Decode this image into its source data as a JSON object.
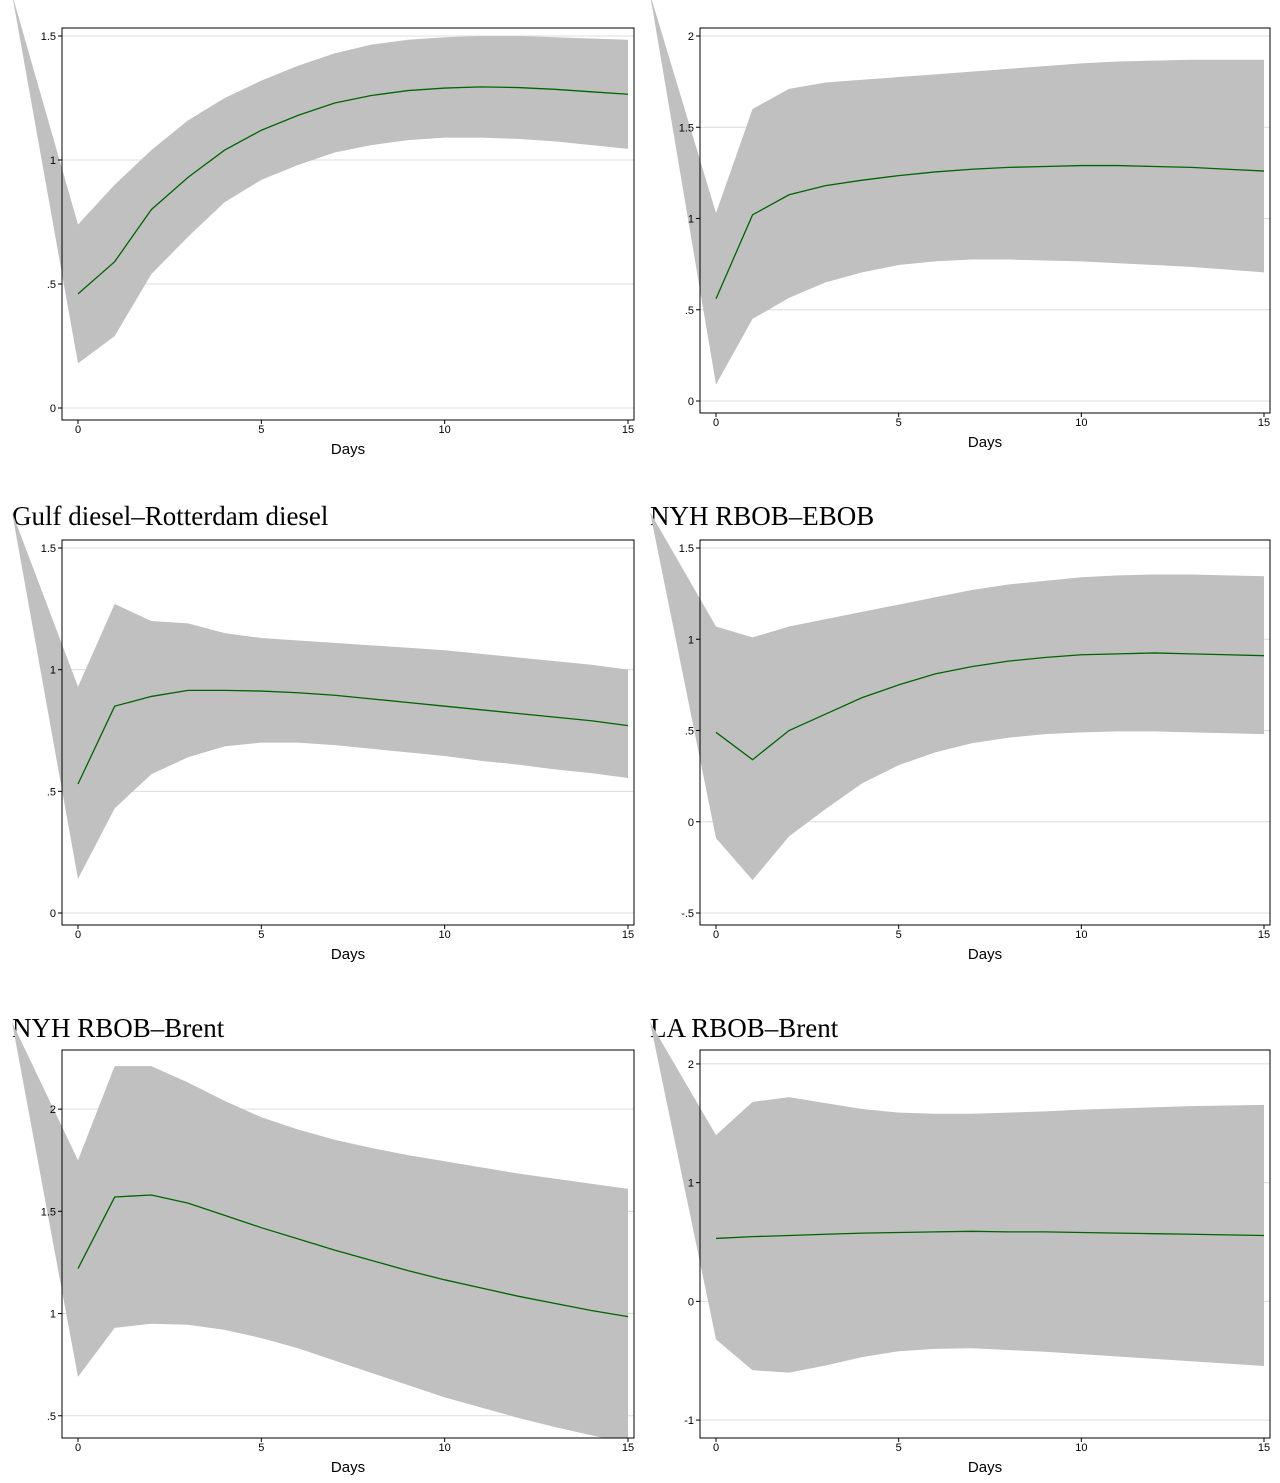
{
  "colors": {
    "band": "#c0c0c0",
    "line": "#006400",
    "grid": "#dcdcdc",
    "frame": "#000000",
    "background": "#ffffff"
  },
  "chart_data": [
    {
      "type": "line",
      "title": "",
      "xlabel": "Days",
      "ylabel": "",
      "xlim": [
        0,
        15
      ],
      "ylim": [
        0,
        1.5
      ],
      "xticks": [
        0,
        5,
        10,
        15
      ],
      "xtick_labels": [
        "0",
        "5",
        "10",
        "15"
      ],
      "yticks": [
        0,
        0.5,
        1,
        1.5
      ],
      "ytick_labels": [
        "0",
        ".5",
        "1",
        "1.5"
      ],
      "grid": true,
      "x": [
        0,
        1,
        2,
        3,
        4,
        5,
        6,
        7,
        8,
        9,
        10,
        11,
        12,
        13,
        14,
        15
      ],
      "series": [
        {
          "role": "estimate",
          "values": [
            0.46,
            0.59,
            0.8,
            0.93,
            1.04,
            1.12,
            1.18,
            1.23,
            1.26,
            1.28,
            1.29,
            1.295,
            1.292,
            1.285,
            1.275,
            1.265
          ]
        },
        {
          "role": "upper",
          "values": [
            0.74,
            0.9,
            1.04,
            1.16,
            1.25,
            1.32,
            1.38,
            1.43,
            1.465,
            1.485,
            1.495,
            1.5,
            1.5,
            1.495,
            1.49,
            1.485
          ]
        },
        {
          "role": "lower",
          "values": [
            0.18,
            0.29,
            0.54,
            0.69,
            0.83,
            0.92,
            0.98,
            1.03,
            1.06,
            1.08,
            1.09,
            1.09,
            1.085,
            1.075,
            1.06,
            1.045
          ]
        }
      ]
    },
    {
      "type": "line",
      "title": "",
      "xlabel": "Days",
      "ylabel": "",
      "xlim": [
        0,
        15
      ],
      "ylim": [
        0,
        2
      ],
      "xticks": [
        0,
        5,
        10,
        15
      ],
      "xtick_labels": [
        "0",
        "5",
        "10",
        "15"
      ],
      "yticks": [
        0,
        0.5,
        1,
        1.5,
        2
      ],
      "ytick_labels": [
        "0",
        ".5",
        "1",
        "1.5",
        "2"
      ],
      "grid": true,
      "x": [
        0,
        1,
        2,
        3,
        4,
        5,
        6,
        7,
        8,
        9,
        10,
        11,
        12,
        13,
        14,
        15
      ],
      "series": [
        {
          "role": "estimate",
          "values": [
            0.56,
            1.02,
            1.13,
            1.18,
            1.21,
            1.235,
            1.255,
            1.27,
            1.28,
            1.285,
            1.29,
            1.29,
            1.285,
            1.28,
            1.27,
            1.26
          ]
        },
        {
          "role": "upper",
          "values": [
            1.03,
            1.6,
            1.71,
            1.745,
            1.76,
            1.775,
            1.79,
            1.805,
            1.82,
            1.835,
            1.85,
            1.86,
            1.865,
            1.87,
            1.87,
            1.87
          ]
        },
        {
          "role": "lower",
          "values": [
            0.09,
            0.45,
            0.565,
            0.65,
            0.705,
            0.745,
            0.765,
            0.775,
            0.775,
            0.77,
            0.765,
            0.755,
            0.745,
            0.735,
            0.72,
            0.705
          ]
        }
      ]
    },
    {
      "type": "line",
      "title": "Gulf diesel–Rotterdam diesel",
      "xlabel": "Days",
      "ylabel": "",
      "xlim": [
        0,
        15
      ],
      "ylim": [
        0,
        1.5
      ],
      "xticks": [
        0,
        5,
        10,
        15
      ],
      "xtick_labels": [
        "0",
        "5",
        "10",
        "15"
      ],
      "yticks": [
        0,
        0.5,
        1,
        1.5
      ],
      "ytick_labels": [
        "0",
        ".5",
        "1",
        "1.5"
      ],
      "grid": true,
      "x": [
        0,
        1,
        2,
        3,
        4,
        5,
        6,
        7,
        8,
        9,
        10,
        11,
        12,
        13,
        14,
        15
      ],
      "series": [
        {
          "role": "estimate",
          "values": [
            0.53,
            0.85,
            0.89,
            0.915,
            0.915,
            0.912,
            0.905,
            0.895,
            0.88,
            0.865,
            0.85,
            0.835,
            0.82,
            0.805,
            0.79,
            0.77
          ]
        },
        {
          "role": "upper",
          "values": [
            0.93,
            1.27,
            1.2,
            1.19,
            1.15,
            1.13,
            1.12,
            1.11,
            1.1,
            1.09,
            1.08,
            1.065,
            1.05,
            1.035,
            1.02,
            1.0
          ]
        },
        {
          "role": "lower",
          "values": [
            0.14,
            0.43,
            0.57,
            0.64,
            0.685,
            0.7,
            0.7,
            0.69,
            0.675,
            0.66,
            0.645,
            0.625,
            0.61,
            0.59,
            0.575,
            0.555
          ]
        }
      ]
    },
    {
      "type": "line",
      "title": "NYH RBOB–EBOB",
      "xlabel": "Days",
      "ylabel": "",
      "xlim": [
        0,
        15
      ],
      "ylim": [
        -0.5,
        1.5
      ],
      "xticks": [
        0,
        5,
        10,
        15
      ],
      "xtick_labels": [
        "0",
        "5",
        "10",
        "15"
      ],
      "yticks": [
        -0.5,
        0,
        0.5,
        1,
        1.5
      ],
      "ytick_labels": [
        "-.5",
        "0",
        ".5",
        "1",
        "1.5"
      ],
      "grid": true,
      "x": [
        0,
        1,
        2,
        3,
        4,
        5,
        6,
        7,
        8,
        9,
        10,
        11,
        12,
        13,
        14,
        15
      ],
      "series": [
        {
          "role": "estimate",
          "values": [
            0.49,
            0.34,
            0.5,
            0.59,
            0.68,
            0.75,
            0.81,
            0.85,
            0.88,
            0.9,
            0.915,
            0.92,
            0.925,
            0.92,
            0.915,
            0.91
          ]
        },
        {
          "role": "upper",
          "values": [
            1.07,
            1.01,
            1.07,
            1.11,
            1.15,
            1.19,
            1.23,
            1.27,
            1.3,
            1.32,
            1.34,
            1.35,
            1.355,
            1.355,
            1.35,
            1.345
          ]
        },
        {
          "role": "lower",
          "values": [
            -0.09,
            -0.32,
            -0.08,
            0.07,
            0.21,
            0.31,
            0.38,
            0.43,
            0.46,
            0.48,
            0.49,
            0.495,
            0.495,
            0.49,
            0.485,
            0.48
          ]
        }
      ]
    },
    {
      "type": "line",
      "title": "NYH RBOB–Brent",
      "xlabel": "Days",
      "ylabel": "",
      "xlim": [
        0,
        15
      ],
      "ylim": [
        0.45,
        2.25
      ],
      "xticks": [
        0,
        5,
        10,
        15
      ],
      "xtick_labels": [
        "0",
        "5",
        "10",
        "15"
      ],
      "yticks": [
        0.5,
        1,
        1.5,
        2
      ],
      "ytick_labels": [
        ".5",
        "1",
        "1.5",
        "2"
      ],
      "grid": true,
      "x": [
        0,
        1,
        2,
        3,
        4,
        5,
        6,
        7,
        8,
        9,
        10,
        11,
        12,
        13,
        14,
        15
      ],
      "series": [
        {
          "role": "estimate",
          "values": [
            1.22,
            1.57,
            1.58,
            1.54,
            1.48,
            1.42,
            1.365,
            1.31,
            1.26,
            1.21,
            1.165,
            1.125,
            1.085,
            1.05,
            1.015,
            0.985
          ]
        },
        {
          "role": "upper",
          "values": [
            1.75,
            2.21,
            2.21,
            2.13,
            2.04,
            1.96,
            1.9,
            1.85,
            1.81,
            1.775,
            1.745,
            1.715,
            1.685,
            1.66,
            1.635,
            1.61
          ]
        },
        {
          "role": "lower",
          "values": [
            0.69,
            0.93,
            0.95,
            0.945,
            0.92,
            0.88,
            0.83,
            0.77,
            0.71,
            0.65,
            0.59,
            0.54,
            0.49,
            0.445,
            0.405,
            0.365
          ]
        }
      ]
    },
    {
      "type": "line",
      "title": "LA RBOB–Brent",
      "xlabel": "Days",
      "ylabel": "",
      "xlim": [
        0,
        15
      ],
      "ylim": [
        -1.05,
        2.05
      ],
      "xticks": [
        0,
        5,
        10,
        15
      ],
      "xtick_labels": [
        "0",
        "5",
        "10",
        "15"
      ],
      "yticks": [
        -1,
        0,
        1,
        2
      ],
      "ytick_labels": [
        "-1",
        "0",
        "1",
        "2"
      ],
      "grid": true,
      "x": [
        0,
        1,
        2,
        3,
        4,
        5,
        6,
        7,
        8,
        9,
        10,
        11,
        12,
        13,
        14,
        15
      ],
      "series": [
        {
          "role": "estimate",
          "values": [
            0.53,
            0.545,
            0.555,
            0.565,
            0.575,
            0.58,
            0.585,
            0.59,
            0.585,
            0.585,
            0.58,
            0.575,
            0.57,
            0.565,
            0.56,
            0.555
          ]
        },
        {
          "role": "upper",
          "values": [
            1.4,
            1.68,
            1.72,
            1.67,
            1.62,
            1.59,
            1.58,
            1.58,
            1.59,
            1.6,
            1.615,
            1.625,
            1.635,
            1.645,
            1.65,
            1.655
          ]
        },
        {
          "role": "lower",
          "values": [
            -0.32,
            -0.58,
            -0.6,
            -0.54,
            -0.47,
            -0.42,
            -0.4,
            -0.395,
            -0.41,
            -0.425,
            -0.445,
            -0.465,
            -0.485,
            -0.505,
            -0.525,
            -0.545
          ]
        }
      ]
    }
  ]
}
